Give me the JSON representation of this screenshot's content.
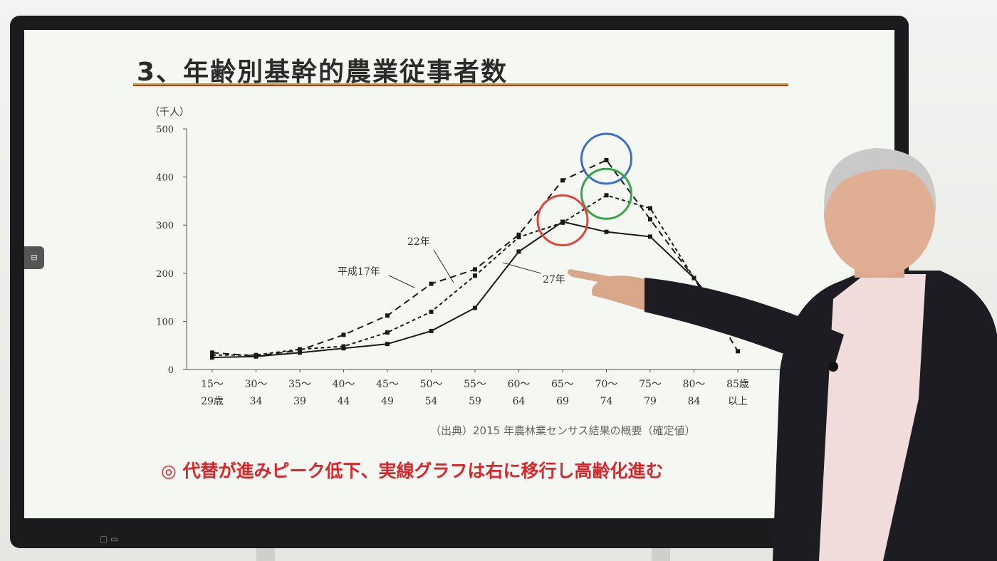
{
  "slide": {
    "title": "3、年齢別基幹的農業従事者数",
    "source_note": "（出典）2015 年農林業センサス結果の概要（確定値）",
    "conclusion": "◎ 代替が進みピーク低下、実線グラフは右に移行し高齢化進む"
  },
  "colors": {
    "title_rule_top": "#c7a33b",
    "title_rule_bottom": "#c0392b",
    "conclusion": "#d9262b",
    "circle_blue": "#3d6fc4",
    "circle_green": "#3aa34a",
    "circle_red": "#e0453d"
  },
  "chart_data": {
    "type": "line",
    "y_unit_label": "（千人）",
    "ylim": [
      0,
      500
    ],
    "y_ticks": [
      0,
      100,
      200,
      300,
      400,
      500
    ],
    "categories": [
      {
        "top": "15〜",
        "bottom": "29歳"
      },
      {
        "top": "30〜",
        "bottom": "34"
      },
      {
        "top": "35〜",
        "bottom": "39"
      },
      {
        "top": "40〜",
        "bottom": "44"
      },
      {
        "top": "45〜",
        "bottom": "49"
      },
      {
        "top": "50〜",
        "bottom": "54"
      },
      {
        "top": "55〜",
        "bottom": "59"
      },
      {
        "top": "60〜",
        "bottom": "64"
      },
      {
        "top": "65〜",
        "bottom": "69"
      },
      {
        "top": "70〜",
        "bottom": "74"
      },
      {
        "top": "75〜",
        "bottom": "79"
      },
      {
        "top": "80〜",
        "bottom": "84"
      },
      {
        "top": "85歳",
        "bottom": "以上"
      }
    ],
    "series": [
      {
        "name": "平成17年",
        "style": "dashed-long",
        "values": [
          35,
          28,
          40,
          72,
          112,
          178,
          208,
          280,
          393,
          435,
          312,
          190,
          38
        ]
      },
      {
        "name": "22年",
        "style": "dashed-short",
        "values": [
          30,
          30,
          42,
          48,
          77,
          120,
          195,
          275,
          305,
          362,
          335,
          190,
          75
        ]
      },
      {
        "name": "27年",
        "style": "solid",
        "values": [
          25,
          27,
          35,
          44,
          53,
          80,
          128,
          245,
          307,
          286,
          276,
          190,
          75
        ]
      }
    ],
    "highlights": [
      {
        "series": 0,
        "point": 9,
        "color": "circle_blue"
      },
      {
        "series": 1,
        "point": 9,
        "color": "circle_green"
      },
      {
        "series": 2,
        "point": 8,
        "color": "circle_red"
      }
    ]
  }
}
